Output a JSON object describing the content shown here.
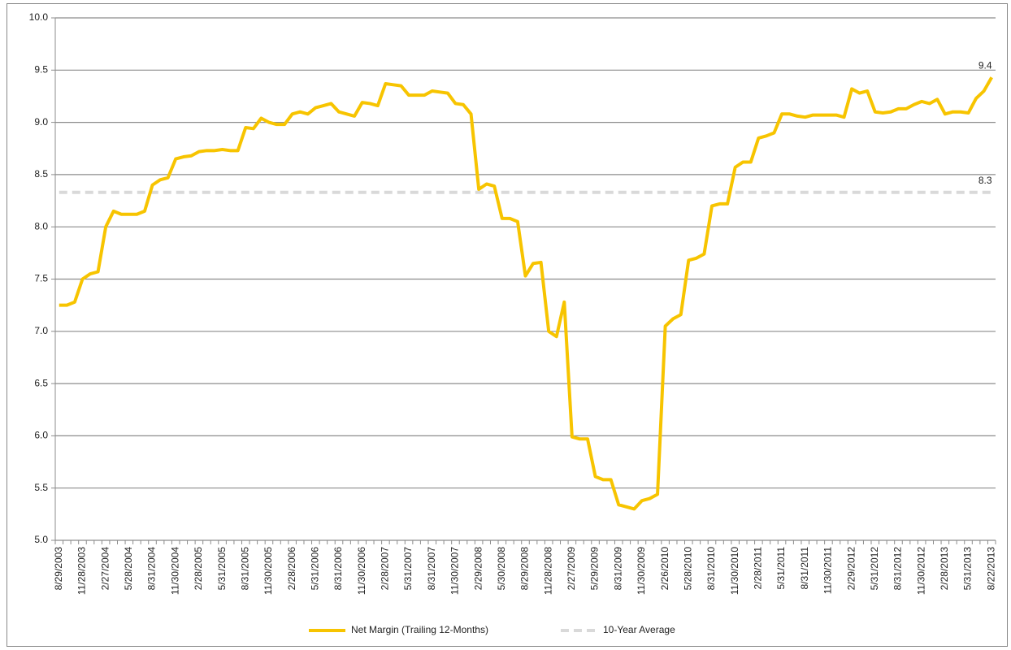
{
  "chart_data": {
    "type": "line",
    "categories": [
      "8/29/2003",
      null,
      null,
      "11/28/2003",
      null,
      null,
      "2/27/2004",
      null,
      null,
      "5/28/2004",
      null,
      null,
      "8/31/2004",
      null,
      null,
      "11/30/2004",
      null,
      null,
      "2/28/2005",
      null,
      null,
      "5/31/2005",
      null,
      null,
      "8/31/2005",
      null,
      null,
      "11/30/2005",
      null,
      null,
      "2/28/2006",
      null,
      null,
      "5/31/2006",
      null,
      null,
      "8/31/2006",
      null,
      null,
      "11/30/2006",
      null,
      null,
      "2/28/2007",
      null,
      null,
      "5/31/2007",
      null,
      null,
      "8/31/2007",
      null,
      null,
      "11/30/2007",
      null,
      null,
      "2/29/2008",
      null,
      null,
      "5/30/2008",
      null,
      null,
      "8/29/2008",
      null,
      null,
      "11/28/2008",
      null,
      null,
      "2/27/2009",
      null,
      null,
      "5/29/2009",
      null,
      null,
      "8/31/2009",
      null,
      null,
      "11/30/2009",
      null,
      null,
      "2/26/2010",
      null,
      null,
      "5/28/2010",
      null,
      null,
      "8/31/2010",
      null,
      null,
      "11/30/2010",
      null,
      null,
      "2/28/2011",
      null,
      null,
      "5/31/2011",
      null,
      null,
      "8/31/2011",
      null,
      null,
      "11/30/2011",
      null,
      null,
      "2/29/2012",
      null,
      null,
      "5/31/2012",
      null,
      null,
      "8/31/2012",
      null,
      null,
      "11/30/2012",
      null,
      null,
      "2/28/2013",
      null,
      null,
      "5/31/2013",
      null,
      null,
      "8/22/2013"
    ],
    "series": [
      {
        "name": "Net Margin (Trailing 12-Months)",
        "color": "#f7c400",
        "dashed": false,
        "end_label": "9.4",
        "values": [
          7.25,
          7.25,
          7.28,
          7.5,
          7.55,
          7.57,
          8.0,
          8.15,
          8.12,
          8.12,
          8.12,
          8.15,
          8.4,
          8.45,
          8.47,
          8.65,
          8.67,
          8.68,
          8.72,
          8.73,
          8.73,
          8.74,
          8.73,
          8.73,
          8.95,
          8.94,
          9.04,
          9.0,
          8.98,
          8.98,
          9.08,
          9.1,
          9.08,
          9.14,
          9.16,
          9.18,
          9.1,
          9.08,
          9.06,
          9.19,
          9.18,
          9.16,
          9.37,
          9.36,
          9.35,
          9.26,
          9.26,
          9.26,
          9.3,
          9.29,
          9.28,
          9.18,
          9.17,
          9.08,
          8.36,
          8.41,
          8.39,
          8.08,
          8.08,
          8.05,
          7.53,
          7.65,
          7.66,
          7.0,
          6.95,
          7.28,
          5.99,
          5.97,
          5.97,
          5.61,
          5.58,
          5.58,
          5.34,
          5.32,
          5.3,
          5.38,
          5.4,
          5.44,
          7.05,
          7.12,
          7.16,
          7.68,
          7.7,
          7.74,
          8.2,
          8.22,
          8.22,
          8.57,
          8.62,
          8.62,
          8.85,
          8.87,
          8.9,
          9.08,
          9.08,
          9.06,
          9.05,
          9.07,
          9.07,
          9.07,
          9.07,
          9.05,
          9.32,
          9.28,
          9.3,
          9.1,
          9.09,
          9.1,
          9.13,
          9.13,
          9.17,
          9.2,
          9.18,
          9.22,
          9.08,
          9.1,
          9.1,
          9.09,
          9.23,
          9.3,
          9.43
        ]
      },
      {
        "name": "10-Year Average",
        "color": "#d9d9d9",
        "dashed": true,
        "end_label": "8.3",
        "values": [
          8.33,
          8.33,
          8.33,
          8.33,
          8.33,
          8.33,
          8.33,
          8.33,
          8.33,
          8.33,
          8.33,
          8.33,
          8.33,
          8.33,
          8.33,
          8.33,
          8.33,
          8.33,
          8.33,
          8.33,
          8.33,
          8.33,
          8.33,
          8.33,
          8.33,
          8.33,
          8.33,
          8.33,
          8.33,
          8.33,
          8.33,
          8.33,
          8.33,
          8.33,
          8.33,
          8.33,
          8.33,
          8.33,
          8.33,
          8.33,
          8.33,
          8.33,
          8.33,
          8.33,
          8.33,
          8.33,
          8.33,
          8.33,
          8.33,
          8.33,
          8.33,
          8.33,
          8.33,
          8.33,
          8.33,
          8.33,
          8.33,
          8.33,
          8.33,
          8.33,
          8.33,
          8.33,
          8.33,
          8.33,
          8.33,
          8.33,
          8.33,
          8.33,
          8.33,
          8.33,
          8.33,
          8.33,
          8.33,
          8.33,
          8.33,
          8.33,
          8.33,
          8.33,
          8.33,
          8.33,
          8.33,
          8.33,
          8.33,
          8.33,
          8.33,
          8.33,
          8.33,
          8.33,
          8.33,
          8.33,
          8.33,
          8.33,
          8.33,
          8.33,
          8.33,
          8.33,
          8.33,
          8.33,
          8.33,
          8.33,
          8.33,
          8.33,
          8.33,
          8.33,
          8.33,
          8.33,
          8.33,
          8.33,
          8.33,
          8.33,
          8.33,
          8.33,
          8.33,
          8.33,
          8.33,
          8.33,
          8.33,
          8.33,
          8.33,
          8.33,
          8.33
        ]
      }
    ],
    "ylim": [
      5,
      10
    ],
    "yticks": [
      {
        "value": 5,
        "label": "5.0"
      },
      5.5,
      {
        "value": 6,
        "label": "6.0"
      },
      6.5,
      {
        "value": 7,
        "label": "7.0"
      },
      7.5,
      {
        "value": 8,
        "label": "8.0"
      },
      8.5,
      {
        "value": 9,
        "label": "9.0"
      },
      9.5,
      {
        "value": 10,
        "label": "10.0"
      }
    ],
    "grid": true,
    "legend": "bottom"
  }
}
